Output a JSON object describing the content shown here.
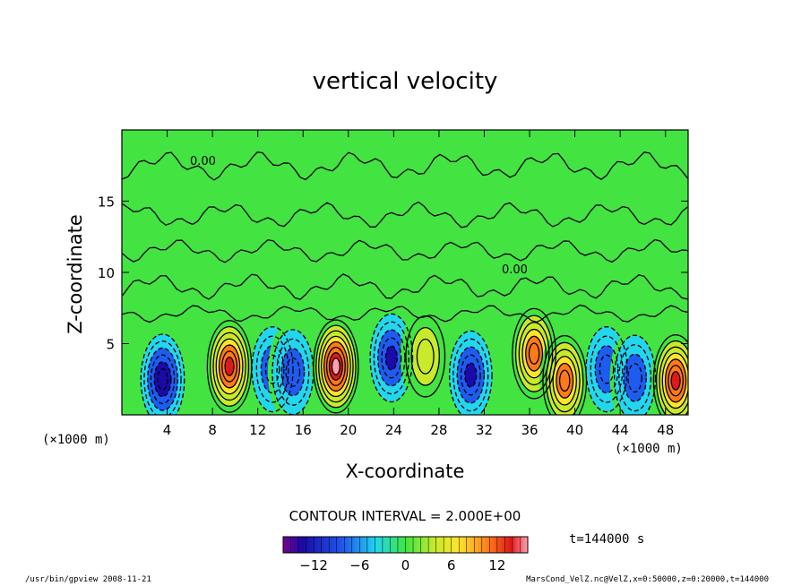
{
  "chart_data": {
    "type": "heatmap",
    "title": "vertical velocity",
    "xlabel": "X-coordinate",
    "ylabel": "Z-coordinate",
    "x_unit": "(×1000 m)",
    "x_unit_left": "(×1000 m)",
    "xlim": [
      0,
      50
    ],
    "ylim": [
      0,
      20
    ],
    "x_ticks": [
      4,
      8,
      12,
      16,
      20,
      24,
      28,
      32,
      36,
      40,
      44,
      48
    ],
    "y_ticks": [
      5,
      10,
      15
    ],
    "contour_label": "0.00",
    "contour_interval": "CONTOUR INTERVAL = 2.000E+00",
    "time_label": "t=144000 s",
    "colorbar": {
      "range": [
        -16,
        16
      ],
      "ticks": [
        -12,
        -6,
        0,
        6,
        12
      ],
      "tick_labels": [
        "−12",
        "−6",
        "0",
        "6",
        "12"
      ]
    },
    "cells": [
      {
        "x": 3.6,
        "z": 2.5,
        "w": -12
      },
      {
        "x": 9.5,
        "z": 3.4,
        "w": 14
      },
      {
        "x": 13.3,
        "z": 3.2,
        "w": -8
      },
      {
        "x": 15.1,
        "z": 3.0,
        "w": -7
      },
      {
        "x": 18.9,
        "z": 3.4,
        "w": 16
      },
      {
        "x": 23.8,
        "z": 4.0,
        "w": -9
      },
      {
        "x": 26.8,
        "z": 4.1,
        "w": 5
      },
      {
        "x": 30.8,
        "z": 2.8,
        "w": -10
      },
      {
        "x": 36.4,
        "z": 4.3,
        "w": 12
      },
      {
        "x": 39.1,
        "z": 2.4,
        "w": 12
      },
      {
        "x": 42.8,
        "z": 3.2,
        "w": -7
      },
      {
        "x": 45.3,
        "z": 2.6,
        "w": -7
      },
      {
        "x": 48.9,
        "z": 2.4,
        "w": 14
      }
    ]
  },
  "footer": {
    "left": "/usr/bin/gpview  2008-11-21",
    "right": "MarsCond_VelZ.nc@VelZ,x=0:50000,z=0:20000,t=144000"
  }
}
